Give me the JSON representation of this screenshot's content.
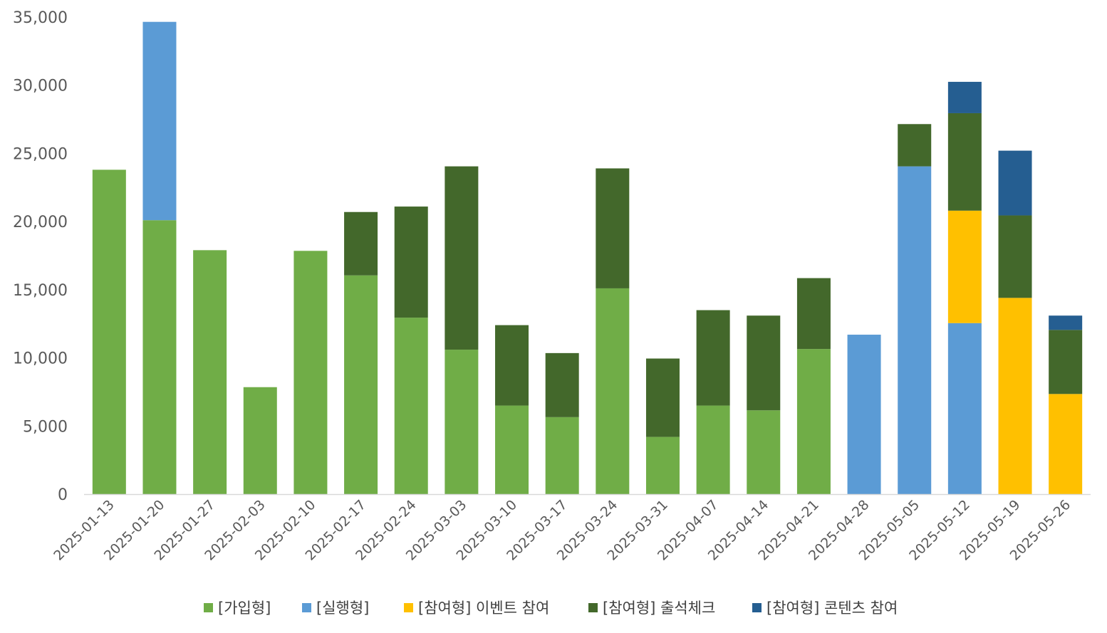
{
  "chart_data": {
    "type": "bar",
    "stacked": true,
    "title": "",
    "xlabel": "",
    "ylabel": "",
    "ylim": [
      0,
      35000
    ],
    "yticks": [
      0,
      5000,
      10000,
      15000,
      20000,
      25000,
      30000,
      35000
    ],
    "ytick_labels": [
      "0",
      "5,000",
      "10,000",
      "15,000",
      "20,000",
      "25,000",
      "30,000",
      "35,000"
    ],
    "grid": false,
    "legend_position": "bottom",
    "categories": [
      "2025-01-13",
      "2025-01-20",
      "2025-01-27",
      "2025-02-03",
      "2025-02-10",
      "2025-02-17",
      "2025-02-24",
      "2025-03-03",
      "2025-03-10",
      "2025-03-17",
      "2025-03-24",
      "2025-03-31",
      "2025-04-07",
      "2025-04-14",
      "2025-04-21",
      "2025-04-28",
      "2025-05-05",
      "2025-05-12",
      "2025-05-19",
      "2025-05-26"
    ],
    "series": [
      {
        "name": "[가입형]",
        "color": "#70AD47",
        "values": [
          23800,
          20100,
          17900,
          7850,
          17850,
          16050,
          12950,
          10600,
          6500,
          5650,
          15100,
          4200,
          6500,
          6150,
          10650,
          0,
          0,
          0,
          0,
          0
        ]
      },
      {
        "name": "[실행형]",
        "color": "#5B9BD5",
        "values": [
          0,
          14550,
          0,
          0,
          0,
          0,
          0,
          0,
          0,
          0,
          0,
          0,
          0,
          0,
          0,
          11700,
          24050,
          12550,
          0,
          0
        ]
      },
      {
        "name": "[참여형] 이벤트 참여",
        "color": "#FFC000",
        "values": [
          0,
          0,
          0,
          0,
          0,
          0,
          0,
          0,
          0,
          0,
          0,
          0,
          0,
          0,
          0,
          0,
          0,
          8250,
          14400,
          7350
        ]
      },
      {
        "name": "[참여형] 출석체크",
        "color": "#43682B",
        "values": [
          0,
          0,
          0,
          0,
          0,
          4650,
          8150,
          13450,
          5900,
          4700,
          8800,
          5750,
          7000,
          6950,
          5200,
          0,
          3100,
          7150,
          6050,
          4700
        ]
      },
      {
        "name": "[참여형] 콘텐츠 참여",
        "color": "#255E91",
        "values": [
          0,
          0,
          0,
          0,
          0,
          0,
          0,
          0,
          0,
          0,
          0,
          0,
          0,
          0,
          0,
          0,
          0,
          2300,
          4750,
          1050
        ]
      }
    ]
  }
}
